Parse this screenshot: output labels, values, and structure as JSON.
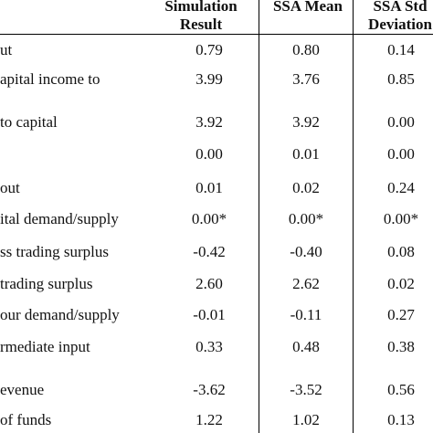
{
  "table": {
    "columns": [
      {
        "line1": "Simulation",
        "line2": "Result"
      },
      {
        "line1": "SSA Mean",
        "line2": ""
      },
      {
        "line1": "SSA Std",
        "line2": "Deviation"
      }
    ],
    "rows": [
      {
        "label": "ut",
        "values": [
          "0.79",
          "0.80",
          "0.14"
        ]
      },
      {
        "label": "apital income to",
        "values": [
          "3.99",
          "3.76",
          "0.85"
        ]
      },
      {
        "label": "to capital",
        "values": [
          "3.92",
          "3.92",
          "0.00"
        ]
      },
      {
        "label": "",
        "values": [
          "0.00",
          "0.01",
          "0.00"
        ]
      },
      {
        "label": "out",
        "values": [
          "0.01",
          "0.02",
          "0.24"
        ]
      },
      {
        "label": "ital demand/supply",
        "values": [
          "0.00*",
          "0.00*",
          "0.00*"
        ]
      },
      {
        "label": "ss trading surplus",
        "values": [
          "-0.42",
          "-0.40",
          "0.08"
        ]
      },
      {
        "label": "trading surplus",
        "values": [
          "2.60",
          "2.62",
          "0.02"
        ]
      },
      {
        "label": "our demand/supply",
        "values": [
          "-0.01",
          "-0.11",
          "0.27"
        ]
      },
      {
        "label": "rmediate input",
        "values": [
          "0.33",
          "0.48",
          "0.38"
        ]
      },
      {
        "label": "evenue",
        "values": [
          "-3.62",
          "-3.52",
          "0.56"
        ]
      },
      {
        "label": "of funds",
        "values": [
          "1.22",
          "1.02",
          "0.13"
        ]
      }
    ]
  }
}
